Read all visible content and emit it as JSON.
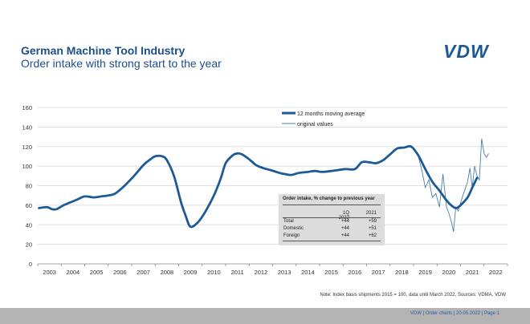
{
  "header": {
    "title": "German Machine Tool Industry",
    "subtitle": "Order intake with strong start to the year",
    "logo": "VDW"
  },
  "chart_data": {
    "type": "line",
    "ylim": [
      0,
      160
    ],
    "yticks": [
      0,
      20,
      40,
      60,
      80,
      100,
      120,
      140,
      160
    ],
    "xlim": [
      2002.5,
      2022.5
    ],
    "xtick_labels": [
      "2003",
      "2004",
      "2005",
      "2006",
      "2007",
      "2008",
      "2009",
      "2010",
      "2011",
      "2012",
      "2013",
      "2014",
      "2015",
      "2016",
      "2017",
      "2018",
      "2019",
      "2020",
      "2021",
      "2022"
    ],
    "xlabel": "",
    "ylabel": "",
    "legend_position": "top-center",
    "series": [
      {
        "name": "12 months moving average",
        "x": [
          2002.55,
          2002.9,
          2003.1,
          2003.3,
          2003.6,
          2004.0,
          2004.2,
          2004.5,
          2004.9,
          2005.2,
          2005.5,
          2005.8,
          2006.2,
          2006.6,
          2007.0,
          2007.3,
          2007.5,
          2007.8,
          2008.0,
          2008.3,
          2008.6,
          2008.8,
          2009.0,
          2009.3,
          2009.6,
          2010.0,
          2010.3,
          2010.5,
          2010.8,
          2011.0,
          2011.2,
          2011.5,
          2011.8,
          2012.1,
          2012.4,
          2012.8,
          2013.0,
          2013.3,
          2013.6,
          2014.0,
          2014.3,
          2014.6,
          2015.0,
          2015.3,
          2015.6,
          2016.0,
          2016.3,
          2016.6,
          2016.9,
          2017.2,
          2017.5,
          2017.8,
          2018.1,
          2018.4,
          2018.7,
          2019.0,
          2019.3,
          2019.6,
          2019.9,
          2020.1,
          2020.3,
          2020.5,
          2020.8,
          2021.0,
          2021.2
        ],
        "values": [
          57,
          58,
          56,
          56,
          60,
          64,
          66,
          69,
          68,
          69,
          70,
          72,
          80,
          90,
          101,
          107,
          110,
          110,
          106,
          90,
          63,
          49,
          38,
          42,
          52,
          70,
          88,
          103,
          111,
          113,
          112,
          107,
          101,
          98,
          96,
          93,
          92,
          91,
          93,
          94,
          95,
          94,
          95,
          96,
          97,
          97,
          104,
          104,
          103,
          106,
          112,
          118,
          119,
          120,
          111,
          97,
          84,
          75,
          65,
          60,
          57,
          60,
          68,
          78,
          88
        ]
      },
      {
        "name": "original values",
        "x": [
          2018.7,
          2018.85,
          2019.0,
          2019.15,
          2019.3,
          2019.45,
          2019.6,
          2019.75,
          2019.9,
          2020.0,
          2020.1,
          2020.2,
          2020.3,
          2020.4,
          2020.5,
          2020.6,
          2020.7,
          2020.8,
          2020.9,
          2021.0,
          2021.1,
          2021.2,
          2021.3,
          2021.4,
          2021.5,
          2021.6,
          2021.7
        ],
        "values": [
          110,
          96,
          78,
          86,
          68,
          72,
          58,
          92,
          58,
          52,
          44,
          33,
          58,
          54,
          62,
          70,
          77,
          84,
          98,
          78,
          100,
          90,
          86,
          128,
          113,
          109,
          113
        ]
      }
    ]
  },
  "table": {
    "title": "Order intake, % change to previous year",
    "headers": [
      "",
      "1Q 2022",
      "2021"
    ],
    "rows": [
      {
        "label": "Total",
        "q": "+44",
        "y": "+59"
      },
      {
        "label": "Domestic",
        "q": "+44",
        "y": "+51"
      },
      {
        "label": "Foreign",
        "q": "+44",
        "y": "+62"
      }
    ]
  },
  "note": "Note: Index basis shipments 2015 = 100, data until March 2022, Sources: VDMA, VDW",
  "footer": "VDW  |  Order charts  |   20.05.2022   |  Page 1"
}
